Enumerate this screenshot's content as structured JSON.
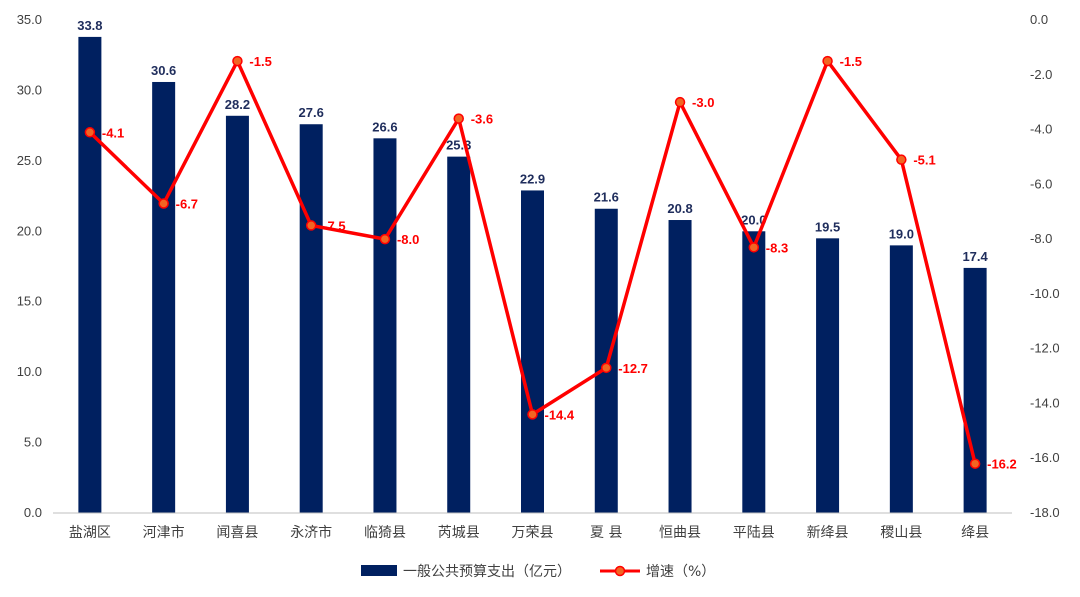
{
  "chart_data": {
    "type": "bar+line",
    "categories": [
      "盐湖区",
      "河津市",
      "闻喜县",
      "永济市",
      "临猗县",
      "芮城县",
      "万荣县",
      "夏 县",
      "恒曲县",
      "平陆县",
      "新绛县",
      "稷山县",
      "绛县"
    ],
    "series": [
      {
        "name": "一般公共预算支出（亿元）",
        "type": "bar",
        "axis": "left",
        "values": [
          33.8,
          30.6,
          28.2,
          27.6,
          26.6,
          25.3,
          22.9,
          21.6,
          20.8,
          20.0,
          19.5,
          19.0,
          17.4
        ],
        "labels": [
          "33.8",
          "30.6",
          "28.2",
          "27.6",
          "26.6",
          "25.3",
          "22.9",
          "21.6",
          "20.8",
          "20.0",
          "19.5",
          "19.0",
          "17.4"
        ],
        "color": "#002060"
      },
      {
        "name": "增速（%）",
        "type": "line",
        "axis": "right",
        "values": [
          -4.1,
          -6.7,
          -1.5,
          -7.5,
          -8.0,
          -3.6,
          -14.4,
          -12.7,
          -3.0,
          -8.3,
          -1.5,
          -5.1,
          -16.2
        ],
        "labels": [
          "-4.1",
          "-6.7",
          "-1.5",
          "-7.5",
          "-8.0",
          "-3.6",
          "-14.4",
          "-12.7",
          "-3.0",
          "-8.3",
          "-1.5",
          "-5.1",
          "-16.2"
        ],
        "color": "#ff0000",
        "marker_fill": "#f26522"
      }
    ],
    "y_left": {
      "range": [
        0,
        35
      ],
      "ticks": [
        0,
        5,
        10,
        15,
        20,
        25,
        30,
        35
      ],
      "tick_labels": [
        "0.0",
        "5.0",
        "10.0",
        "15.0",
        "20.0",
        "25.0",
        "30.0",
        "35.0"
      ]
    },
    "y_right": {
      "range": [
        -18,
        0
      ],
      "ticks": [
        0,
        -2,
        -4,
        -6,
        -8,
        -10,
        -12,
        -14,
        -16,
        -18
      ],
      "tick_labels": [
        "0.0",
        "-2.0",
        "-4.0",
        "-6.0",
        "-8.0",
        "-10.0",
        "-12.0",
        "-14.0",
        "-16.0",
        "-18.0"
      ]
    },
    "grid": false,
    "legend": "bottom-center"
  }
}
